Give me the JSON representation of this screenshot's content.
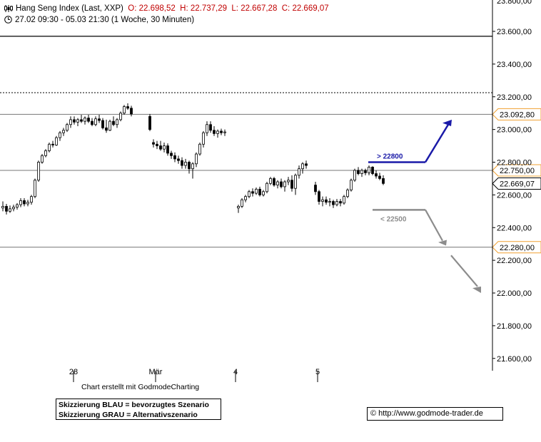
{
  "header": {
    "title": "Hang Seng Index (Last, XXP)",
    "open": "O: 22.698,52",
    "high": "H: 22.737,29",
    "low": "L: 22.667,28",
    "close": "C: 22.669,07",
    "range": "27.02 09:30 - 05.03 21:30 (1 Woche, 30 Minuten)",
    "chart_icon": "candlestick-icon",
    "clock_icon": "clock-icon"
  },
  "footer": {
    "credit": "Chart erstellt mit GodmodeCharting",
    "legend_line1": "Skizzierung BLAU = bevorzugtes Szenario",
    "legend_line2": "Skizzierung GRAU = Alternativszenario",
    "url": "© http://www.godmode-trader.de"
  },
  "colors": {
    "blue_scenario": "#1a1aa8",
    "grey_scenario": "#8c8c8c",
    "price_header": "#c00000",
    "marker_border": "#f0a030"
  },
  "chart_data": {
    "type": "candlestick",
    "y_axis": {
      "ticks": [
        "23.600,00",
        "23.400,00",
        "23.200,00",
        "23.000,00",
        "22.800,00",
        "22.600,00",
        "22.400,00",
        "22.200,00",
        "22.000,00",
        "21.800,00",
        "21.600,00"
      ],
      "tick_values": [
        23600,
        23400,
        23200,
        23000,
        22800,
        22600,
        22400,
        22200,
        22000,
        21800,
        21600
      ],
      "top_partial_label": "23.800,00",
      "range": [
        21520,
        23830
      ],
      "position": "right"
    },
    "x_axis": {
      "labels": [
        "28",
        "Mär",
        "4",
        "5"
      ]
    },
    "horizontal_lines": [
      {
        "value": 23092.8,
        "label": "23.092,80",
        "style": "solid"
      },
      {
        "value": 22750.0,
        "label": "22.750,00",
        "style": "solid"
      },
      {
        "value": 22280.0,
        "label": "22.280,00",
        "style": "solid"
      },
      {
        "value": 23225,
        "label": "",
        "style": "dotted"
      },
      {
        "value": 23570,
        "label": "",
        "style": "solid-heavy"
      }
    ],
    "last_price": {
      "value": 22669.07,
      "label": "22.669,07"
    },
    "scenarios": [
      {
        "label": "> 22800",
        "color": "blue",
        "level": 22800
      },
      {
        "label": "< 22500",
        "color": "grey",
        "level": 22500
      }
    ],
    "sessions": [
      {
        "name": "28",
        "candles": [
          [
            22520,
            22560,
            22500,
            22530
          ],
          [
            22530,
            22545,
            22480,
            22500
          ],
          [
            22500,
            22535,
            22490,
            22515
          ],
          [
            22515,
            22540,
            22500,
            22525
          ],
          [
            22525,
            22550,
            22510,
            22540
          ],
          [
            22540,
            22580,
            22525,
            22565
          ],
          [
            22565,
            22580,
            22530,
            22545
          ],
          [
            22545,
            22570,
            22530,
            22555
          ],
          [
            22555,
            22600,
            22540,
            22590
          ],
          [
            22590,
            22700,
            22580,
            22690
          ],
          [
            22690,
            22810,
            22680,
            22800
          ],
          [
            22800,
            22850,
            22790,
            22840
          ],
          [
            22840,
            22880,
            22830,
            22870
          ],
          [
            22870,
            22920,
            22860,
            22910
          ],
          [
            22910,
            22930,
            22890,
            22905
          ],
          [
            22905,
            22960,
            22900,
            22950
          ],
          [
            22950,
            22990,
            22930,
            22980
          ],
          [
            22980,
            23010,
            22960,
            22995
          ],
          [
            22995,
            23040,
            22985,
            23030
          ],
          [
            23030,
            23080,
            23010,
            23060
          ],
          [
            23060,
            23080,
            23030,
            23045
          ],
          [
            23045,
            23070,
            23020,
            23060
          ],
          [
            23060,
            23090,
            23040,
            23050
          ],
          [
            23050,
            23080,
            23030,
            23070
          ],
          [
            23070,
            23090,
            23040,
            23050
          ],
          [
            23050,
            23070,
            23020,
            23030
          ],
          [
            23030,
            23080,
            23020,
            23065
          ],
          [
            23065,
            23090,
            23040,
            23055
          ],
          [
            23055,
            23070,
            23000,
            23010
          ],
          [
            23010,
            23060,
            22980,
            22995
          ],
          [
            22995,
            23060,
            22990,
            23050
          ],
          [
            23050,
            23080,
            23020,
            23030
          ],
          [
            23030,
            23070,
            23010,
            23060
          ],
          [
            23060,
            23110,
            23050,
            23100
          ],
          [
            23100,
            23150,
            23090,
            23140
          ],
          [
            23140,
            23160,
            23120,
            23130
          ],
          [
            23130,
            23145,
            23080,
            23095
          ]
        ]
      },
      {
        "name": "Mär",
        "candles": [
          [
            23080,
            23095,
            22990,
            23000
          ],
          [
            22920,
            22940,
            22890,
            22910
          ],
          [
            22910,
            22930,
            22880,
            22900
          ],
          [
            22900,
            22930,
            22870,
            22880
          ],
          [
            22880,
            22920,
            22860,
            22900
          ],
          [
            22900,
            22915,
            22840,
            22855
          ],
          [
            22855,
            22870,
            22820,
            22840
          ],
          [
            22840,
            22860,
            22800,
            22820
          ],
          [
            22820,
            22840,
            22790,
            22810
          ],
          [
            22810,
            22830,
            22760,
            22780
          ],
          [
            22780,
            22820,
            22760,
            22800
          ],
          [
            22800,
            22810,
            22730,
            22760
          ],
          [
            22760,
            22800,
            22700,
            22790
          ],
          [
            22790,
            22860,
            22770,
            22850
          ],
          [
            22850,
            22920,
            22840,
            22910
          ],
          [
            22910,
            22990,
            22890,
            22980
          ],
          [
            22980,
            23050,
            22960,
            23030
          ],
          [
            23030,
            23050,
            22980,
            22995
          ],
          [
            22995,
            23020,
            22960,
            22975
          ],
          [
            22975,
            23000,
            22950,
            22990
          ],
          [
            22990,
            23005,
            22965,
            22980
          ],
          [
            22980,
            23000,
            22960,
            22985
          ]
        ]
      },
      {
        "name": "4",
        "candles": [
          [
            22520,
            22540,
            22490,
            22530
          ],
          [
            22530,
            22580,
            22520,
            22570
          ],
          [
            22570,
            22600,
            22555,
            22590
          ],
          [
            22590,
            22630,
            22580,
            22620
          ],
          [
            22620,
            22640,
            22590,
            22610
          ],
          [
            22610,
            22645,
            22600,
            22635
          ],
          [
            22635,
            22650,
            22590,
            22600
          ],
          [
            22600,
            22630,
            22590,
            22620
          ],
          [
            22620,
            22680,
            22610,
            22670
          ],
          [
            22670,
            22710,
            22660,
            22700
          ],
          [
            22700,
            22710,
            22650,
            22660
          ],
          [
            22660,
            22690,
            22640,
            22680
          ],
          [
            22680,
            22700,
            22640,
            22650
          ],
          [
            22650,
            22690,
            22620,
            22680
          ],
          [
            22680,
            22710,
            22660,
            22690
          ],
          [
            22690,
            22720,
            22620,
            22640
          ],
          [
            22640,
            22730,
            22600,
            22720
          ],
          [
            22720,
            22780,
            22700,
            22760
          ],
          [
            22760,
            22800,
            22730,
            22790
          ],
          [
            22790,
            22810,
            22760,
            22780
          ]
        ]
      },
      {
        "name": "5",
        "candles": [
          [
            22660,
            22680,
            22600,
            22620
          ],
          [
            22620,
            22630,
            22540,
            22560
          ],
          [
            22560,
            22590,
            22530,
            22570
          ],
          [
            22570,
            22590,
            22540,
            22555
          ],
          [
            22555,
            22580,
            22530,
            22560
          ],
          [
            22560,
            22570,
            22520,
            22540
          ],
          [
            22540,
            22575,
            22530,
            22560
          ],
          [
            22560,
            22575,
            22530,
            22550
          ],
          [
            22550,
            22600,
            22540,
            22590
          ],
          [
            22590,
            22640,
            22580,
            22630
          ],
          [
            22630,
            22700,
            22620,
            22690
          ],
          [
            22690,
            22760,
            22680,
            22750
          ],
          [
            22750,
            22770,
            22720,
            22730
          ],
          [
            22730,
            22760,
            22710,
            22750
          ],
          [
            22750,
            22760,
            22720,
            22735
          ],
          [
            22735,
            22780,
            22720,
            22770
          ],
          [
            22770,
            22775,
            22720,
            22730
          ],
          [
            22730,
            22750,
            22700,
            22715
          ],
          [
            22715,
            22735,
            22690,
            22700
          ],
          [
            22700,
            22720,
            22660,
            22670
          ]
        ]
      }
    ]
  }
}
